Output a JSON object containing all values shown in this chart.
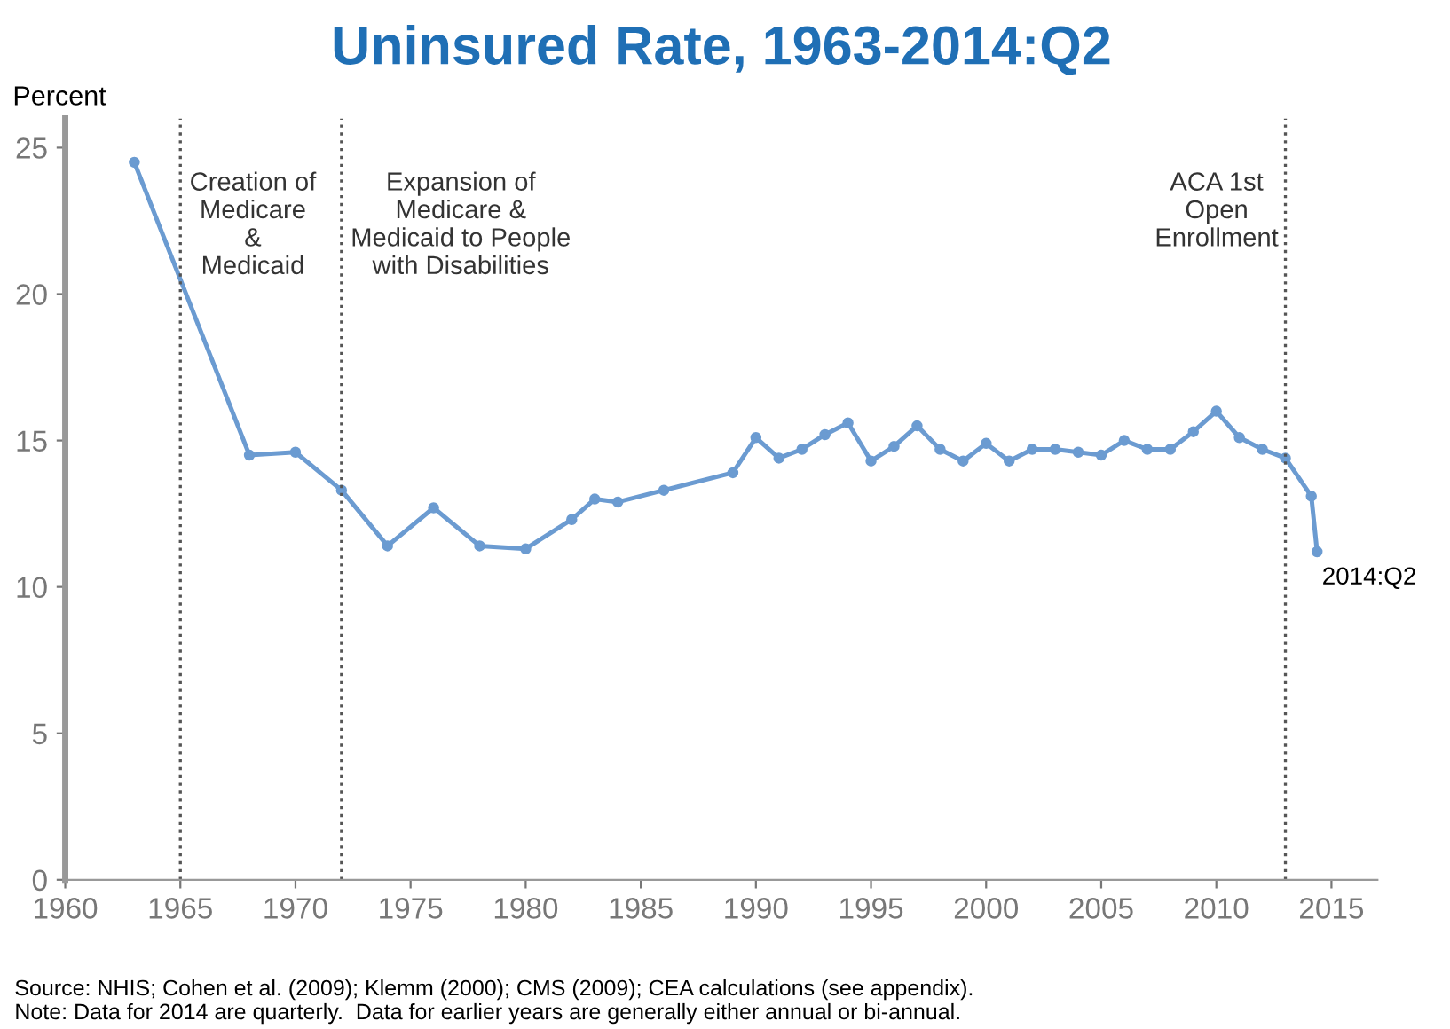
{
  "chart_data": {
    "type": "line",
    "title": "Uninsured Rate, 1963-2014:Q2",
    "ylabel": "Percent",
    "x": [
      1963,
      1968,
      1970,
      1972,
      1974,
      1976,
      1978,
      1980,
      1982,
      1983,
      1984,
      1986,
      1989,
      1990,
      1991,
      1992,
      1993,
      1994,
      1995,
      1996,
      1997,
      1998,
      1999,
      2000,
      2001,
      2002,
      2003,
      2004,
      2005,
      2006,
      2007,
      2008,
      2009,
      2010,
      2011,
      2012,
      2013,
      2014.125,
      2014.375
    ],
    "series": [
      {
        "color": "#6b9bd1",
        "values": [
          24.5,
          14.5,
          14.6,
          13.3,
          11.4,
          12.7,
          11.4,
          11.3,
          12.3,
          13.0,
          12.9,
          13.3,
          13.9,
          15.1,
          14.4,
          14.7,
          15.2,
          15.6,
          14.3,
          14.8,
          15.5,
          14.7,
          14.3,
          14.9,
          14.3,
          14.7,
          14.7,
          14.6,
          14.5,
          15.0,
          14.7,
          14.7,
          15.3,
          16.0,
          15.1,
          14.7,
          14.4,
          13.1,
          11.2
        ]
      }
    ],
    "xlim": [
      1960,
      2017
    ],
    "ylim": [
      0,
      26
    ],
    "xticks": [
      1960,
      1965,
      1970,
      1975,
      1980,
      1985,
      1990,
      1995,
      2000,
      2005,
      2010,
      2015
    ],
    "yticks": [
      0,
      5,
      10,
      15,
      20,
      25
    ],
    "grid": false,
    "marker": "circle",
    "line_style": "solid",
    "ref_lines": [
      {
        "axis": "x",
        "value": 1965,
        "label": "Creation of\nMedicare\n&\nMedicaid",
        "line_style": "dotted",
        "color": "#555555"
      },
      {
        "axis": "x",
        "value": 1972,
        "label": "Expansion of\nMedicare &\nMedicaid to People\nwith Disabilities",
        "line_style": "dotted",
        "color": "#555555"
      },
      {
        "axis": "x",
        "value": 2013,
        "label": "ACA 1st\nOpen\nEnrollment",
        "line_style": "dotted",
        "color": "#555555"
      }
    ],
    "annotations": [
      {
        "text": "2014:Q2",
        "x": 2014.375,
        "y": 11.2
      },
      "Source: NHIS; Cohen et al. (2009); Klemm (2000); CMS (2009); CEA calculations (see appendix).\nNote: Data for 2014 are quarterly.  Data for earlier years are generally either annual or bi-annual."
    ]
  }
}
